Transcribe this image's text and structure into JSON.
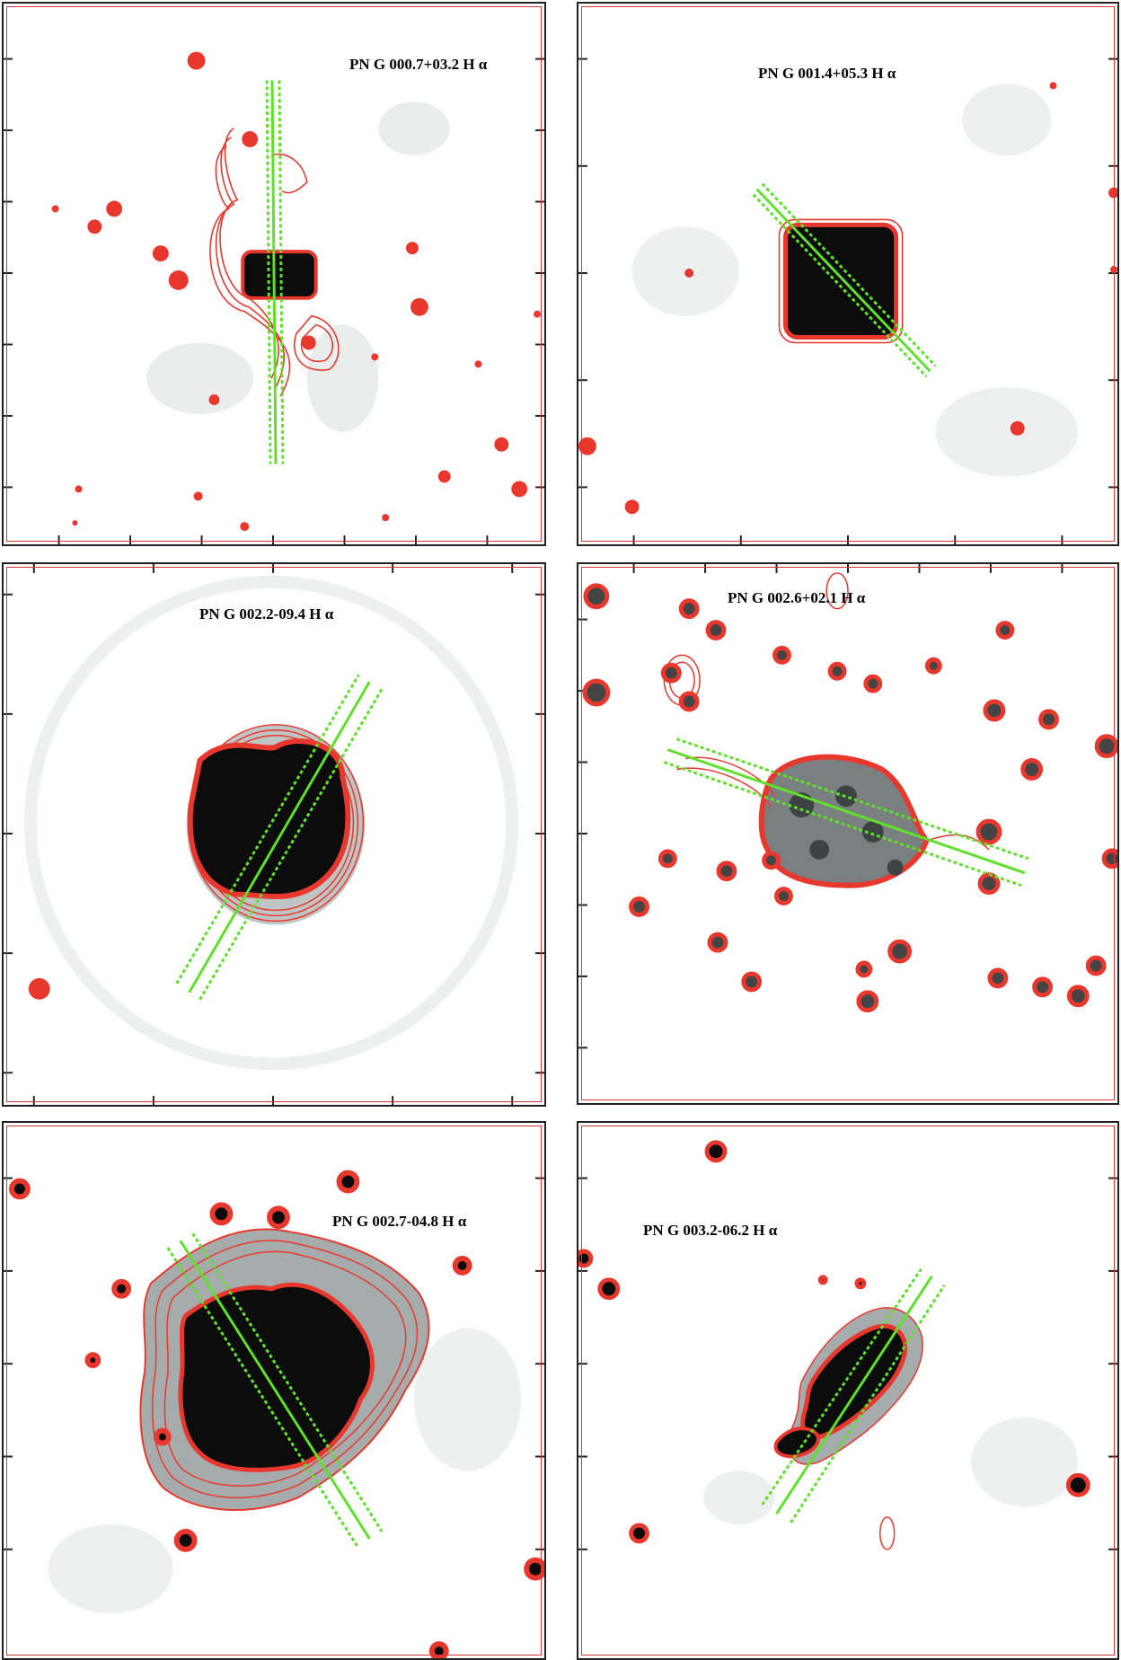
{
  "panels": [
    {
      "title": "PN G 000.7+03.2 H α"
    },
    {
      "title": "PN G 001.4+05.3 H α"
    },
    {
      "title": "PN G 002.2-09.4 H α"
    },
    {
      "title": "PN G 002.6+02.1 H α"
    },
    {
      "title": "PN G 002.7-04.8 H α"
    },
    {
      "title": "PN G 003.2-06.2 H α"
    }
  ],
  "colors": {
    "contour": "#e8382e",
    "slit": "#5fe02a",
    "nebula": "#0c0c0c",
    "frame": "#222222"
  }
}
